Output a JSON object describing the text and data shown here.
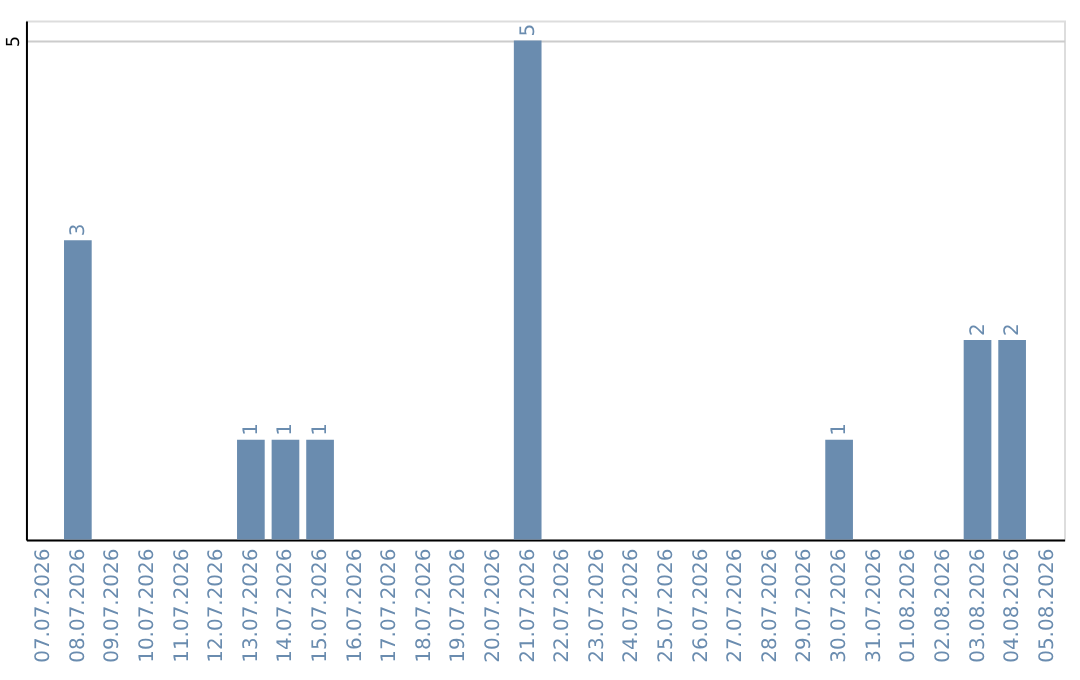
{
  "chart_data": {
    "type": "bar",
    "categories": [
      "07.07.2026",
      "08.07.2026",
      "09.07.2026",
      "10.07.2026",
      "11.07.2026",
      "12.07.2026",
      "13.07.2026",
      "14.07.2026",
      "15.07.2026",
      "16.07.2026",
      "17.07.2026",
      "18.07.2026",
      "19.07.2026",
      "20.07.2026",
      "21.07.2026",
      "22.07.2026",
      "23.07.2026",
      "24.07.2026",
      "25.07.2026",
      "26.07.2026",
      "27.07.2026",
      "28.07.2026",
      "29.07.2026",
      "30.07.2026",
      "31.07.2026",
      "01.08.2026",
      "02.08.2026",
      "03.08.2026",
      "04.08.2026",
      "05.08.2026"
    ],
    "values": [
      0,
      3,
      0,
      0,
      0,
      0,
      1,
      1,
      1,
      0,
      0,
      0,
      0,
      0,
      5,
      0,
      0,
      0,
      0,
      0,
      0,
      0,
      0,
      1,
      0,
      0,
      0,
      2,
      2,
      0
    ],
    "value_labels": [
      null,
      "3",
      null,
      null,
      null,
      null,
      "1",
      "1",
      "1",
      null,
      null,
      null,
      null,
      null,
      "5",
      null,
      null,
      null,
      null,
      null,
      null,
      null,
      null,
      "1",
      null,
      null,
      null,
      "2",
      "2",
      null
    ],
    "color": "#6a8caf",
    "ylim": [
      0,
      5.2
    ],
    "yticks": [
      5
    ],
    "grid": "y"
  }
}
